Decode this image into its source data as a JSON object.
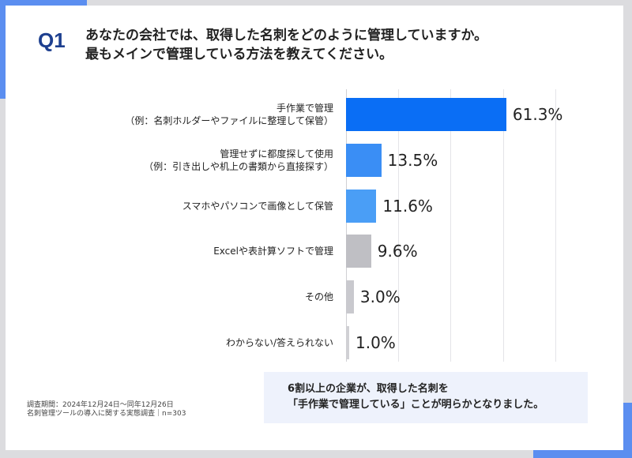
{
  "question": {
    "number": "Q1",
    "line1": "あなたの会社では、取得した名刺をどのように管理していますか。",
    "line2": "最もメインで管理している方法を教えてください。"
  },
  "chart_data": {
    "type": "bar",
    "orientation": "horizontal",
    "categories": [
      [
        "手作業で管理",
        "（例：名刺ホルダーやファイルに整理して保管）"
      ],
      [
        "管理せずに都度探して使用",
        "（例：引き出しや机上の書類から直接探す）"
      ],
      [
        "スマホやパソコンで画像として保管"
      ],
      [
        "Excelや表計算ソフトで管理"
      ],
      [
        "その他"
      ],
      [
        "わからない/答えられない"
      ]
    ],
    "values": [
      61.3,
      13.5,
      11.6,
      9.6,
      3.0,
      1.0
    ],
    "value_labels": [
      "61.3%",
      "13.5%",
      "11.6%",
      "9.6%",
      "3.0%",
      "1.0%"
    ],
    "colors": [
      "#0a6ef5",
      "#3a8ef5",
      "#4a9ef6",
      "#bfbfc4",
      "#c9c9ce",
      "#d0d0d4"
    ],
    "xlim": [
      0,
      100
    ],
    "grid_step": 20,
    "grid": true
  },
  "footnote": {
    "line1": "調査期間：2024年12月24日〜同年12月26日",
    "line2": "名刺管理ツールの導入に関する実態調査｜n=303"
  },
  "callout": {
    "line1": "6割以上の企業が、取得した名刺を",
    "line2": "「手作業で管理している」ことが明らかとなりました。"
  }
}
